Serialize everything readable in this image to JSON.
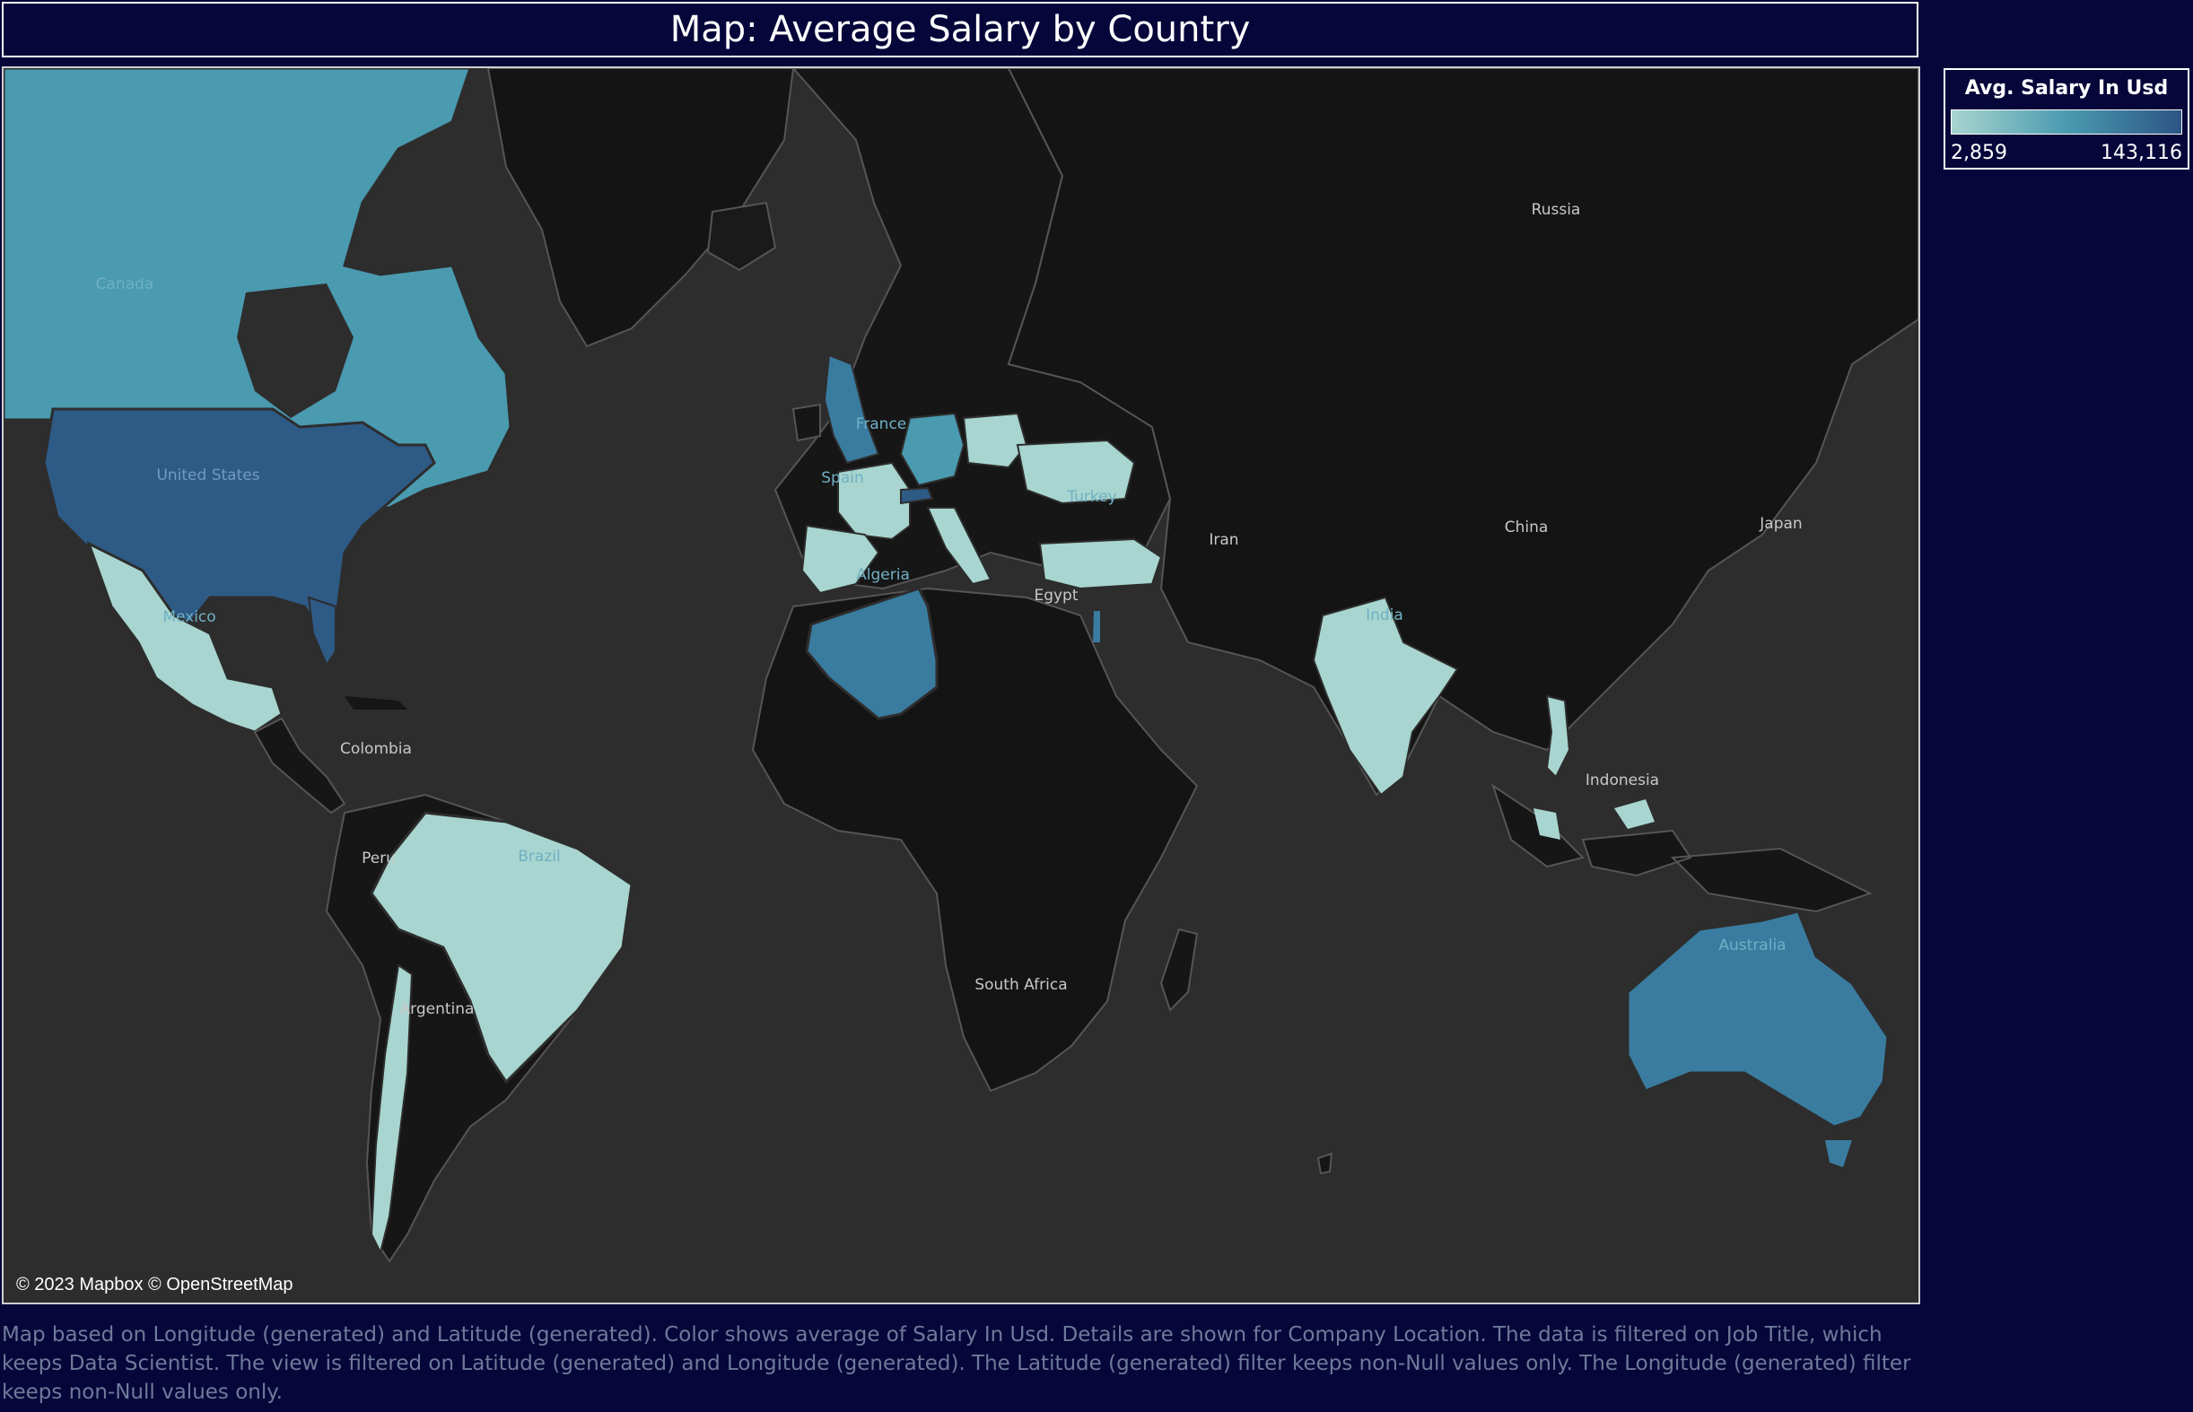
{
  "title": "Map: Average Salary by Country",
  "legend": {
    "title": "Avg. Salary In Usd",
    "min_label": "2,859",
    "max_label": "143,116",
    "min_value": 2859,
    "max_value": 143116,
    "color_low": "#a8d5cf",
    "color_high": "#2c5585"
  },
  "attribution": "© 2023 Mapbox © OpenStreetMap",
  "map": {
    "background_color": "#2d2d2d",
    "ocean_color": "#2d2d2d",
    "land_color": "#141414",
    "border_color": "#5a5a5a",
    "country_labels": [
      {
        "name": "Canada",
        "shaded": true
      },
      {
        "name": "United States",
        "shaded": true
      },
      {
        "name": "Mexico",
        "shaded": true
      },
      {
        "name": "Colombia",
        "shaded": false
      },
      {
        "name": "Peru",
        "shaded": false
      },
      {
        "name": "Brazil",
        "shaded": true
      },
      {
        "name": "Argentina",
        "shaded": false
      },
      {
        "name": "France",
        "shaded": true
      },
      {
        "name": "Spain",
        "shaded": true
      },
      {
        "name": "Turkey",
        "shaded": true
      },
      {
        "name": "Algeria",
        "shaded": true
      },
      {
        "name": "Egypt",
        "shaded": false
      },
      {
        "name": "South Africa",
        "shaded": false
      },
      {
        "name": "Russia",
        "shaded": false
      },
      {
        "name": "Iran",
        "shaded": false
      },
      {
        "name": "China",
        "shaded": false
      },
      {
        "name": "Japan",
        "shaded": false
      },
      {
        "name": "India",
        "shaded": true
      },
      {
        "name": "Indonesia",
        "shaded": false
      },
      {
        "name": "Australia",
        "shaded": true
      }
    ]
  },
  "caption": "Map based on Longitude (generated) and Latitude (generated).  Color shows average of Salary In Usd.  Details are shown for Company Location. The data is filtered on Job Title, which keeps Data Scientist. The view is filtered on Latitude (generated) and Longitude (generated). The Latitude (generated) filter keeps non-Null values only. The Longitude (generated) filter keeps non-Null values only."
}
